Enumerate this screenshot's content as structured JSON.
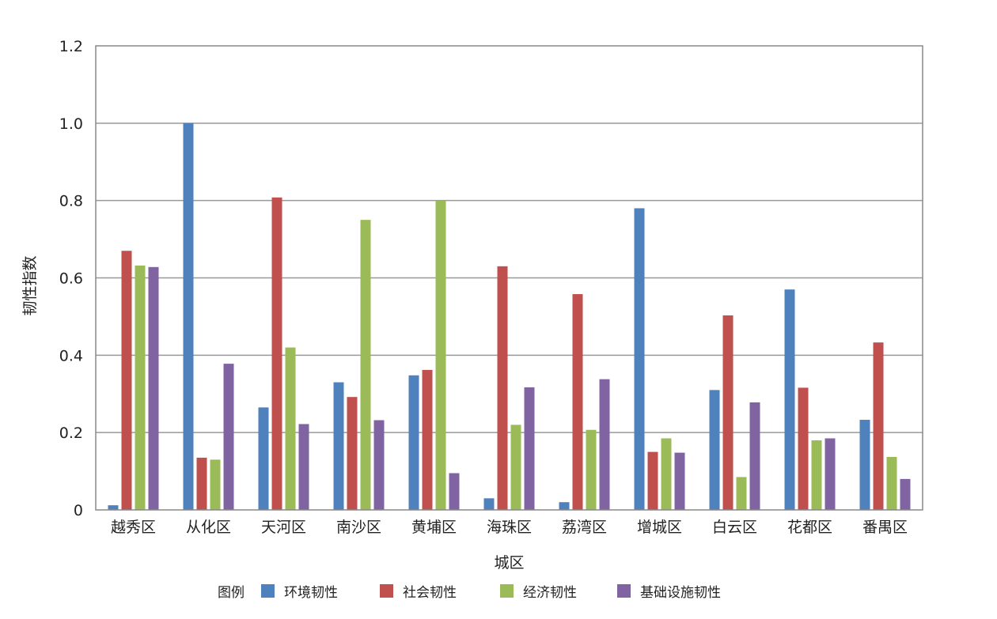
{
  "chart_data": {
    "type": "bar",
    "xlabel": "城区",
    "ylabel": "韧性指数",
    "ylim": [
      0,
      1.2
    ],
    "yticks": [
      "0",
      "0.2",
      "0.4",
      "0.6",
      "0.8",
      "1.0",
      "1.2"
    ],
    "ytick_values": [
      0,
      0.2,
      0.4,
      0.6,
      0.8,
      1.0,
      1.2
    ],
    "grid": true,
    "legend_title": "图例",
    "legend_position": "bottom",
    "categories": [
      "越秀区",
      "从化区",
      "天河区",
      "南沙区",
      "黄埔区",
      "海珠区",
      "荔湾区",
      "增城区",
      "白云区",
      "花都区",
      "番禺区"
    ],
    "series": [
      {
        "name": "环境韧性",
        "color": "#4F81BD",
        "values": [
          0.012,
          1.0,
          0.265,
          0.33,
          0.348,
          0.03,
          0.02,
          0.78,
          0.31,
          0.57,
          0.233
        ]
      },
      {
        "name": "社会韧性",
        "color": "#C0504D",
        "values": [
          0.67,
          0.135,
          0.808,
          0.292,
          0.362,
          0.63,
          0.558,
          0.15,
          0.503,
          0.316,
          0.433
        ]
      },
      {
        "name": "经济韧性",
        "color": "#9BBB59",
        "values": [
          0.632,
          0.13,
          0.42,
          0.75,
          0.8,
          0.22,
          0.207,
          0.185,
          0.085,
          0.18,
          0.137
        ]
      },
      {
        "name": "基础设施韧性",
        "color": "#8064A2",
        "values": [
          0.628,
          0.378,
          0.222,
          0.232,
          0.095,
          0.317,
          0.338,
          0.148,
          0.278,
          0.185,
          0.08
        ]
      }
    ]
  }
}
